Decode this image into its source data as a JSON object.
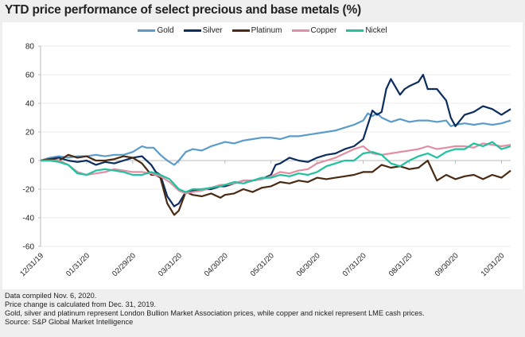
{
  "chart_data": {
    "type": "line",
    "title": "YTD price performance of select precious and base metals (%)",
    "xlabel": "",
    "ylabel": "",
    "ylim": [
      -60,
      80
    ],
    "yticks": [
      80,
      60,
      40,
      20,
      0,
      -20,
      -40,
      -60
    ],
    "xticks": [
      "12/31/19",
      "01/31/20",
      "02/29/20",
      "03/31/20",
      "04/30/20",
      "05/31/20",
      "06/30/20",
      "07/31/20",
      "08/31/20",
      "09/30/20",
      "10/31/20"
    ],
    "x_unit": "month_index_from_12/31/19",
    "x_range": [
      0,
      10.2
    ],
    "grid": true,
    "legend_position": "top-center",
    "series": [
      {
        "name": "Gold",
        "color": "#5b9bc9",
        "x": [
          0,
          0.2,
          0.4,
          0.6,
          0.8,
          1.0,
          1.2,
          1.4,
          1.6,
          1.8,
          2.0,
          2.2,
          2.3,
          2.45,
          2.6,
          2.75,
          2.9,
          3.0,
          3.15,
          3.3,
          3.5,
          3.7,
          3.9,
          4.0,
          4.2,
          4.4,
          4.6,
          4.8,
          5.0,
          5.2,
          5.4,
          5.6,
          5.8,
          6.0,
          6.2,
          6.4,
          6.6,
          6.8,
          7.0,
          7.1,
          7.2,
          7.3,
          7.4,
          7.6,
          7.8,
          8.0,
          8.2,
          8.4,
          8.6,
          8.8,
          8.9,
          9.0,
          9.2,
          9.4,
          9.6,
          9.8,
          10.0,
          10.2
        ],
        "y": [
          0,
          2,
          3,
          2,
          3,
          3,
          4,
          3,
          4,
          4,
          6,
          10,
          9,
          9,
          4,
          0,
          -3,
          0,
          6,
          8,
          7,
          10,
          12,
          13,
          12,
          14,
          15,
          16,
          16,
          15,
          17,
          17,
          18,
          19,
          20,
          21,
          23,
          25,
          28,
          33,
          31,
          33,
          30,
          27,
          29,
          27,
          28,
          28,
          27,
          28,
          24,
          25,
          26,
          25,
          26,
          25,
          26,
          28
        ]
      },
      {
        "name": "Silver",
        "color": "#0c2d5e",
        "x": [
          0,
          0.2,
          0.4,
          0.6,
          0.8,
          1.0,
          1.2,
          1.4,
          1.6,
          1.8,
          2.0,
          2.2,
          2.4,
          2.5,
          2.6,
          2.75,
          2.9,
          3.0,
          3.15,
          3.3,
          3.5,
          3.7,
          3.9,
          4.0,
          4.2,
          4.4,
          4.6,
          4.8,
          5.0,
          5.1,
          5.2,
          5.4,
          5.6,
          5.8,
          6.0,
          6.2,
          6.4,
          6.6,
          6.8,
          7.0,
          7.2,
          7.3,
          7.4,
          7.5,
          7.6,
          7.8,
          7.9,
          8.0,
          8.2,
          8.3,
          8.4,
          8.6,
          8.8,
          8.9,
          9.0,
          9.2,
          9.4,
          9.6,
          9.8,
          10.0,
          10.2
        ],
        "y": [
          0,
          1,
          2,
          0,
          -1,
          0,
          -3,
          -1,
          -2,
          0,
          2,
          3,
          -3,
          -8,
          -10,
          -25,
          -32,
          -30,
          -22,
          -21,
          -20,
          -20,
          -18,
          -18,
          -16,
          -14,
          -14,
          -13,
          -10,
          -3,
          -2,
          2,
          0,
          -1,
          2,
          4,
          5,
          8,
          10,
          15,
          35,
          32,
          34,
          50,
          57,
          46,
          50,
          52,
          55,
          60,
          50,
          50,
          42,
          30,
          24,
          32,
          34,
          38,
          36,
          32,
          36
        ]
      },
      {
        "name": "Platinum",
        "color": "#4a2a12",
        "x": [
          0,
          0.2,
          0.4,
          0.6,
          0.8,
          1.0,
          1.2,
          1.4,
          1.6,
          1.8,
          2.0,
          2.2,
          2.4,
          2.5,
          2.6,
          2.75,
          2.9,
          3.0,
          3.15,
          3.3,
          3.5,
          3.7,
          3.9,
          4.0,
          4.2,
          4.4,
          4.6,
          4.8,
          5.0,
          5.2,
          5.4,
          5.6,
          5.8,
          6.0,
          6.2,
          6.4,
          6.6,
          6.8,
          7.0,
          7.2,
          7.4,
          7.6,
          7.8,
          8.0,
          8.2,
          8.4,
          8.6,
          8.8,
          9.0,
          9.2,
          9.4,
          9.6,
          9.8,
          10.0,
          10.2
        ],
        "y": [
          0,
          1,
          0,
          4,
          2,
          3,
          0,
          0,
          1,
          3,
          2,
          -2,
          -10,
          -10,
          -12,
          -30,
          -38,
          -35,
          -22,
          -24,
          -25,
          -23,
          -26,
          -24,
          -23,
          -20,
          -22,
          -19,
          -18,
          -15,
          -16,
          -14,
          -15,
          -12,
          -13,
          -12,
          -11,
          -10,
          -8,
          -8,
          -3,
          -5,
          -4,
          -6,
          -5,
          0,
          -14,
          -10,
          -13,
          -11,
          -10,
          -13,
          -10,
          -12,
          -7
        ]
      },
      {
        "name": "Copper",
        "color": "#e38da3",
        "x": [
          0,
          0.2,
          0.4,
          0.6,
          0.8,
          1.0,
          1.2,
          1.4,
          1.6,
          1.8,
          2.0,
          2.2,
          2.4,
          2.6,
          2.8,
          3.0,
          3.15,
          3.3,
          3.5,
          3.7,
          3.9,
          4.0,
          4.2,
          4.4,
          4.6,
          4.8,
          5.0,
          5.2,
          5.4,
          5.6,
          5.8,
          6.0,
          6.2,
          6.4,
          6.6,
          6.8,
          7.0,
          7.2,
          7.4,
          7.6,
          7.8,
          8.0,
          8.2,
          8.4,
          8.6,
          8.8,
          9.0,
          9.2,
          9.4,
          9.6,
          9.8,
          10.0,
          10.2
        ],
        "y": [
          0,
          0,
          0,
          -3,
          -8,
          -10,
          -9,
          -8,
          -6,
          -7,
          -8,
          -8,
          -9,
          -11,
          -15,
          -21,
          -23,
          -22,
          -21,
          -19,
          -17,
          -17,
          -16,
          -14,
          -14,
          -13,
          -11,
          -8,
          -9,
          -7,
          -6,
          -2,
          0,
          2,
          5,
          8,
          10,
          5,
          4,
          5,
          6,
          7,
          8,
          10,
          8,
          9,
          10,
          10,
          9,
          12,
          11,
          10,
          11
        ]
      },
      {
        "name": "Nickel",
        "color": "#1fc19f",
        "x": [
          0,
          0.2,
          0.4,
          0.6,
          0.8,
          1.0,
          1.2,
          1.4,
          1.6,
          1.8,
          2.0,
          2.2,
          2.4,
          2.6,
          2.8,
          3.0,
          3.15,
          3.3,
          3.5,
          3.7,
          3.9,
          4.0,
          4.2,
          4.4,
          4.6,
          4.8,
          5.0,
          5.2,
          5.4,
          5.6,
          5.8,
          6.0,
          6.2,
          6.4,
          6.6,
          6.8,
          7.0,
          7.2,
          7.4,
          7.6,
          7.8,
          8.0,
          8.2,
          8.4,
          8.6,
          8.8,
          9.0,
          9.2,
          9.4,
          9.6,
          9.8,
          10.0,
          10.2
        ],
        "y": [
          0,
          0,
          -1,
          -3,
          -9,
          -10,
          -7,
          -6,
          -7,
          -8,
          -10,
          -10,
          -8,
          -10,
          -13,
          -20,
          -22,
          -20,
          -20,
          -19,
          -18,
          -17,
          -15,
          -16,
          -14,
          -12,
          -12,
          -10,
          -11,
          -9,
          -10,
          -8,
          -4,
          -2,
          0,
          0,
          5,
          6,
          4,
          -2,
          -4,
          0,
          3,
          5,
          2,
          6,
          8,
          8,
          12,
          10,
          13,
          8,
          10
        ]
      }
    ]
  },
  "notes": [
    "Data compiled Nov. 6, 2020.",
    "Price change is calculated from Dec. 31, 2019.",
    "Gold, silver and platinum represent London Bullion Market Association prices, while copper and nickel represent LME cash prices.",
    "Source: S&P Global Market Intelligence"
  ]
}
